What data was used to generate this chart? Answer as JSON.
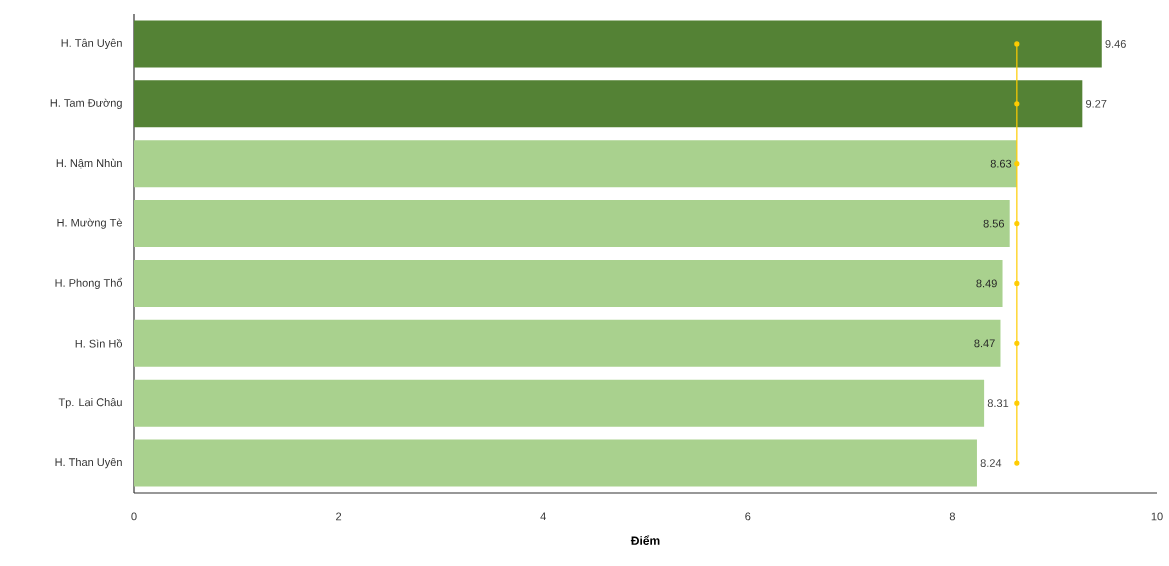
{
  "chart_data": {
    "type": "bar",
    "orientation": "horizontal",
    "xlabel": "Điểm",
    "categories": [
      "H. Tân Uyên",
      "H. Tam Đường",
      "H. Nậm Nhùn",
      "H. Mường Tè",
      "H. Phong Thổ",
      "H. Sìn Hồ",
      "Tp. Lai Châu",
      "H. Than Uyên"
    ],
    "series": [
      {
        "values": [
          9.46,
          9.27,
          8.63,
          8.56,
          8.49,
          8.47,
          8.31,
          8.24
        ],
        "value_labels": [
          "9.46",
          "9.27",
          "8.63",
          "8.56",
          "8.49",
          "8.47",
          "8.31",
          "8.24"
        ],
        "colors": [
          "#548235",
          "#548235",
          "#a9d18e",
          "#a9d18e",
          "#a9d18e",
          "#a9d18e",
          "#a9d18e",
          "#a9d18e"
        ]
      },
      {
        "type": "line",
        "color": "#ffcc00",
        "marker": "circle",
        "values": [
          8.63,
          8.63,
          8.63,
          8.63,
          8.63,
          8.63,
          8.63,
          8.63
        ]
      }
    ],
    "xlim": [
      0,
      10
    ],
    "xticks": [
      0,
      2,
      4,
      6,
      8,
      10
    ]
  }
}
